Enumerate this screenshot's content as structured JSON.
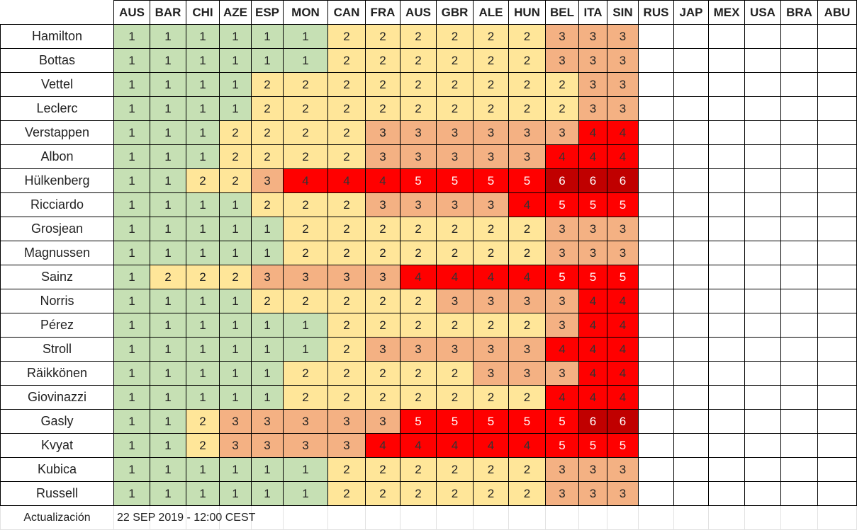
{
  "table": {
    "header": [
      "AUS",
      "BAR",
      "CHI",
      "AZE",
      "ESP",
      "MON",
      "CAN",
      "FRA",
      "AUS",
      "GBR",
      "ALE",
      "HUN",
      "BEL",
      "ITA",
      "SIN",
      "RUS",
      "JAP",
      "MEX",
      "USA",
      "BRA",
      "ABU"
    ],
    "rows": [
      {
        "name": "Hamilton",
        "values": [
          1,
          1,
          1,
          1,
          1,
          1,
          2,
          2,
          2,
          2,
          2,
          2,
          3,
          3,
          3
        ]
      },
      {
        "name": "Bottas",
        "values": [
          1,
          1,
          1,
          1,
          1,
          1,
          2,
          2,
          2,
          2,
          2,
          2,
          3,
          3,
          3
        ]
      },
      {
        "name": "Vettel",
        "values": [
          1,
          1,
          1,
          1,
          2,
          2,
          2,
          2,
          2,
          2,
          2,
          2,
          2,
          3,
          3
        ]
      },
      {
        "name": "Leclerc",
        "values": [
          1,
          1,
          1,
          1,
          2,
          2,
          2,
          2,
          2,
          2,
          2,
          2,
          2,
          3,
          3
        ]
      },
      {
        "name": "Verstappen",
        "values": [
          1,
          1,
          1,
          2,
          2,
          2,
          2,
          3,
          3,
          3,
          3,
          3,
          3,
          4,
          4
        ]
      },
      {
        "name": "Albon",
        "values": [
          1,
          1,
          1,
          2,
          2,
          2,
          2,
          3,
          3,
          3,
          3,
          3,
          4,
          4,
          4
        ]
      },
      {
        "name": "Hülkenberg",
        "values": [
          1,
          1,
          2,
          2,
          3,
          4,
          4,
          4,
          5,
          5,
          5,
          5,
          6,
          6,
          6
        ]
      },
      {
        "name": "Ricciardo",
        "values": [
          1,
          1,
          1,
          1,
          2,
          2,
          2,
          3,
          3,
          3,
          3,
          4,
          5,
          5,
          5
        ]
      },
      {
        "name": "Grosjean",
        "values": [
          1,
          1,
          1,
          1,
          1,
          2,
          2,
          2,
          2,
          2,
          2,
          2,
          3,
          3,
          3
        ]
      },
      {
        "name": "Magnussen",
        "values": [
          1,
          1,
          1,
          1,
          1,
          2,
          2,
          2,
          2,
          2,
          2,
          2,
          3,
          3,
          3
        ]
      },
      {
        "name": "Sainz",
        "values": [
          1,
          2,
          2,
          2,
          3,
          3,
          3,
          3,
          4,
          4,
          4,
          4,
          5,
          5,
          5
        ]
      },
      {
        "name": "Norris",
        "values": [
          1,
          1,
          1,
          1,
          2,
          2,
          2,
          2,
          2,
          3,
          3,
          3,
          3,
          4,
          4
        ]
      },
      {
        "name": "Pérez",
        "values": [
          1,
          1,
          1,
          1,
          1,
          1,
          2,
          2,
          2,
          2,
          2,
          2,
          3,
          4,
          4
        ]
      },
      {
        "name": "Stroll",
        "values": [
          1,
          1,
          1,
          1,
          1,
          1,
          2,
          3,
          3,
          3,
          3,
          3,
          4,
          4,
          4
        ]
      },
      {
        "name": "Räikkönen",
        "values": [
          1,
          1,
          1,
          1,
          1,
          2,
          2,
          2,
          2,
          2,
          3,
          3,
          3,
          4,
          4
        ]
      },
      {
        "name": "Giovinazzi",
        "values": [
          1,
          1,
          1,
          1,
          1,
          2,
          2,
          2,
          2,
          2,
          2,
          2,
          4,
          4,
          4
        ]
      },
      {
        "name": "Gasly",
        "values": [
          1,
          1,
          2,
          3,
          3,
          3,
          3,
          3,
          5,
          5,
          5,
          5,
          5,
          6,
          6
        ]
      },
      {
        "name": "Kvyat",
        "values": [
          1,
          1,
          2,
          3,
          3,
          3,
          3,
          4,
          4,
          4,
          4,
          4,
          5,
          5,
          5
        ]
      },
      {
        "name": "Kubica",
        "values": [
          1,
          1,
          1,
          1,
          1,
          1,
          2,
          2,
          2,
          2,
          2,
          2,
          3,
          3,
          3
        ]
      },
      {
        "name": "Russell",
        "values": [
          1,
          1,
          1,
          1,
          1,
          1,
          2,
          2,
          2,
          2,
          2,
          2,
          3,
          3,
          3
        ]
      }
    ],
    "footer": {
      "label": "Actualización",
      "date": "22 SEP 2019 - 12:00 CEST"
    }
  }
}
